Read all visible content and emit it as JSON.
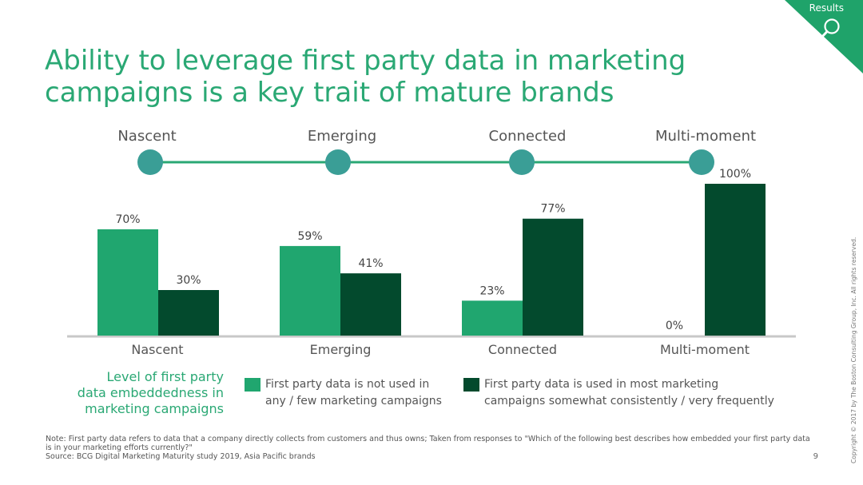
{
  "badge": {
    "label": "Results",
    "icon": "search-icon",
    "color": "#1fa36a"
  },
  "title": "Ability to leverage first party data in marketing campaigns is a key trait of mature brands",
  "stages": [
    "Nascent",
    "Emerging",
    "Connected",
    "Multi-moment"
  ],
  "colors": {
    "title": "#2aa874",
    "timeline_line": "#2aa874",
    "timeline_dot": "#3a9e96",
    "light_bar": "#20a66f",
    "dark_bar": "#034a2d"
  },
  "chart_data": {
    "type": "bar",
    "categories": [
      "Nascent",
      "Emerging",
      "Connected",
      "Multi-moment"
    ],
    "series": [
      {
        "name": "First party data is not used in any / few marketing campaigns",
        "values": [
          70,
          59,
          23,
          0
        ],
        "labels": [
          "70%",
          "59%",
          "23%",
          "0%"
        ],
        "color": "#20a66f"
      },
      {
        "name": "First party data is used in most marketing campaigns somewhat consistently / very frequently",
        "values": [
          30,
          41,
          77,
          100
        ],
        "labels": [
          "30%",
          "41%",
          "77%",
          "100%"
        ],
        "color": "#034a2d"
      }
    ],
    "ylim": [
      0,
      100
    ],
    "grid": false
  },
  "legend": {
    "caption_lines": [
      "Level of first party",
      "data embeddedness in",
      "marketing campaigns"
    ],
    "item1_lines": [
      "First party data is not used in",
      "any / few marketing campaigns"
    ],
    "item2_lines": [
      "First party data is used in most marketing",
      "campaigns somewhat consistently / very frequently"
    ]
  },
  "note": "Note: First party data refers to data that a company directly collects from customers and thus owns; Taken from responses to \"Which of the following best describes how embedded your first party data is in your marketing efforts currently?\"",
  "source": "Source: BCG Digital Marketing Maturity study 2019, Asia Pacific brands",
  "page_number": "9",
  "copyright": "Copyright © 2017 by The Boston Consulting Group, Inc. All rights reserved."
}
